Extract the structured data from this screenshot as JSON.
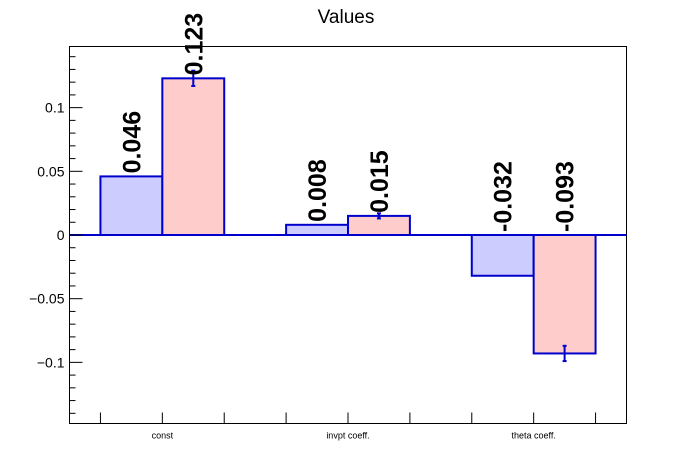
{
  "chart_data": {
    "type": "bar",
    "title": "Values",
    "xlabel": "",
    "ylabel": "",
    "categories": [
      "const",
      "invpt coeff.",
      "theta coeff."
    ],
    "ylim": [
      -0.148,
      0.148
    ],
    "yticks": [
      -0.1,
      -0.05,
      0,
      0.05,
      0.1
    ],
    "ytick_labels": [
      "−0.1",
      "−0.05",
      "0",
      "0.05",
      "0.1"
    ],
    "grid": false,
    "legend": "none",
    "series": [
      {
        "color": "#ccccff",
        "edge_color": "#0000cc",
        "values": [
          0.046,
          0.008,
          -0.032
        ],
        "labels": [
          "0.046",
          "0.008",
          "-0.032"
        ],
        "errors": [
          0,
          0,
          0
        ]
      },
      {
        "color": "#ffcccc",
        "edge_color": "#0000cc",
        "values": [
          0.123,
          0.015,
          -0.093
        ],
        "labels": [
          "0.123",
          "0.015",
          "-0.093"
        ],
        "errors": [
          0.006,
          0.002,
          0.006
        ]
      }
    ]
  }
}
